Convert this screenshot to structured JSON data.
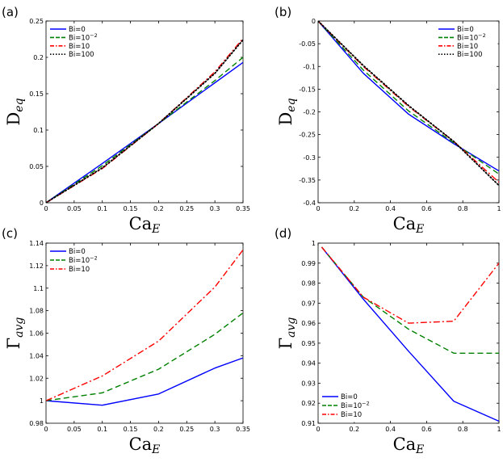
{
  "chart_data": [
    {
      "type": "line",
      "panel_label": "(a)",
      "ylabel_main": "D",
      "ylabel_sub": "eq",
      "xlabel_main": "Ca",
      "xlabel_sub": "E",
      "xlim": [
        0,
        0.35
      ],
      "ylim": [
        0,
        0.25
      ],
      "xticks": [
        0,
        0.05,
        0.1,
        0.15,
        0.2,
        0.25,
        0.3,
        0.35
      ],
      "xtick_labels": [
        "0",
        "0.05",
        "0.1",
        "0.15",
        "0.2",
        "0.25",
        "0.3",
        "0.35"
      ],
      "yticks": [
        0,
        0.05,
        0.1,
        0.15,
        0.2,
        0.25
      ],
      "ytick_labels": [
        "0",
        "0.05",
        "0.1",
        "0.15",
        "0.2",
        "0.25"
      ],
      "legend_position": "top-left",
      "series": [
        {
          "name": "Bi=0",
          "name_base": "Bi=0",
          "name_exp": "",
          "color": "#0000ff",
          "dash": "solid",
          "x": [
            0,
            0.1,
            0.2,
            0.3,
            0.35
          ],
          "y": [
            0,
            0.054,
            0.109,
            0.165,
            0.193
          ]
        },
        {
          "name": "Bi=10^-2",
          "name_base": "Bi=10",
          "name_exp": "−2",
          "color": "#008000",
          "dash": "dash",
          "x": [
            0,
            0.1,
            0.2,
            0.3,
            0.35
          ],
          "y": [
            0,
            0.051,
            0.109,
            0.168,
            0.2
          ]
        },
        {
          "name": "Bi=10",
          "name_base": "Bi=10",
          "name_exp": "",
          "color": "#ff0000",
          "dash": "dashdot",
          "x": [
            0,
            0.1,
            0.2,
            0.3,
            0.35
          ],
          "y": [
            0,
            0.047,
            0.109,
            0.18,
            0.226
          ]
        },
        {
          "name": "Bi=100",
          "name_base": "Bi=100",
          "name_exp": "",
          "color": "#000000",
          "dash": "dot",
          "x": [
            0,
            0.1,
            0.2,
            0.3,
            0.35
          ],
          "y": [
            0,
            0.048,
            0.109,
            0.178,
            0.224
          ]
        }
      ]
    },
    {
      "type": "line",
      "panel_label": "(b)",
      "ylabel_main": "D",
      "ylabel_sub": "eq",
      "xlabel_main": "Ca",
      "xlabel_sub": "E",
      "xlim": [
        0,
        1
      ],
      "ylim": [
        -0.4,
        0
      ],
      "xticks": [
        0,
        0.2,
        0.4,
        0.6,
        0.8,
        1
      ],
      "xtick_labels": [
        "0",
        "0.2",
        "0.4",
        "0.6",
        "0.8",
        "1"
      ],
      "yticks": [
        -0.4,
        -0.35,
        -0.3,
        -0.25,
        -0.2,
        -0.15,
        -0.1,
        -0.05,
        0
      ],
      "ytick_labels": [
        "-0.4",
        "-0.35",
        "-0.3",
        "-0.25",
        "-0.2",
        "-0.15",
        "-0.1",
        "-0.05",
        "0"
      ],
      "legend_position": "top-right",
      "series": [
        {
          "name": "Bi=0",
          "name_base": "Bi=0",
          "name_exp": "",
          "color": "#0000ff",
          "dash": "solid",
          "x": [
            0,
            0.25,
            0.5,
            0.75,
            1
          ],
          "y": [
            0,
            -0.115,
            -0.205,
            -0.27,
            -0.33
          ]
        },
        {
          "name": "Bi=10^-2",
          "name_base": "Bi=10",
          "name_exp": "−2",
          "color": "#008000",
          "dash": "dash",
          "x": [
            0,
            0.25,
            0.5,
            0.75,
            1
          ],
          "y": [
            0,
            -0.108,
            -0.198,
            -0.268,
            -0.337
          ]
        },
        {
          "name": "Bi=10",
          "name_base": "Bi=10",
          "name_exp": "",
          "color": "#ff0000",
          "dash": "dashdot",
          "x": [
            0,
            0.25,
            0.5,
            0.75,
            1
          ],
          "y": [
            0,
            -0.1,
            -0.188,
            -0.265,
            -0.355
          ]
        },
        {
          "name": "Bi=100",
          "name_base": "Bi=100",
          "name_exp": "",
          "color": "#000000",
          "dash": "dot",
          "x": [
            0,
            0.25,
            0.5,
            0.75,
            1
          ],
          "y": [
            0,
            -0.098,
            -0.186,
            -0.265,
            -0.362
          ]
        }
      ]
    },
    {
      "type": "line",
      "panel_label": "(c)",
      "ylabel_main": "Γ",
      "ylabel_sub": "avg",
      "xlabel_main": "Ca",
      "xlabel_sub": "E",
      "xlim": [
        0,
        0.35
      ],
      "ylim": [
        0.98,
        1.14
      ],
      "xticks": [
        0,
        0.05,
        0.1,
        0.15,
        0.2,
        0.25,
        0.3,
        0.35
      ],
      "xtick_labels": [
        "0",
        "0.05",
        "0.1",
        "0.15",
        "0.2",
        "0.25",
        "0.3",
        "0.35"
      ],
      "yticks": [
        0.98,
        1,
        1.02,
        1.04,
        1.06,
        1.08,
        1.1,
        1.12,
        1.14
      ],
      "ytick_labels": [
        "0.98",
        "1",
        "1.02",
        "1.04",
        "1.06",
        "1.08",
        "1.1",
        "1.12",
        "1.14"
      ],
      "legend_position": "top-left",
      "series": [
        {
          "name": "Bi=0",
          "name_base": "Bi=0",
          "name_exp": "",
          "color": "#0000ff",
          "dash": "solid",
          "x": [
            0,
            0.1,
            0.2,
            0.3,
            0.35
          ],
          "y": [
            1.0,
            0.996,
            1.006,
            1.029,
            1.038
          ]
        },
        {
          "name": "Bi=10^-2",
          "name_base": "Bi=10",
          "name_exp": "−2",
          "color": "#008000",
          "dash": "dash",
          "x": [
            0,
            0.1,
            0.2,
            0.3,
            0.35
          ],
          "y": [
            1.0,
            1.007,
            1.028,
            1.059,
            1.078
          ]
        },
        {
          "name": "Bi=10",
          "name_base": "Bi=10",
          "name_exp": "",
          "color": "#ff0000",
          "dash": "dashdot",
          "x": [
            0,
            0.1,
            0.2,
            0.3,
            0.35
          ],
          "y": [
            1.0,
            1.022,
            1.053,
            1.101,
            1.134
          ]
        }
      ]
    },
    {
      "type": "line",
      "panel_label": "(d)",
      "ylabel_main": "Γ",
      "ylabel_sub": "avg",
      "xlabel_main": "Ca",
      "xlabel_sub": "E",
      "xlim": [
        0,
        1
      ],
      "ylim": [
        0.91,
        1
      ],
      "xticks": [
        0,
        0.2,
        0.4,
        0.6,
        0.8,
        1
      ],
      "xtick_labels": [
        "0",
        "0.2",
        "0.4",
        "0.6",
        "0.8",
        "1"
      ],
      "yticks": [
        0.91,
        0.92,
        0.93,
        0.94,
        0.95,
        0.96,
        0.97,
        0.98,
        0.99,
        1
      ],
      "ytick_labels": [
        "0.91",
        "0.92",
        "0.93",
        "0.94",
        "0.95",
        "0.96",
        "0.97",
        "0.98",
        "0.99",
        "1"
      ],
      "legend_position": "bottom-left",
      "series": [
        {
          "name": "Bi=0",
          "name_base": "Bi=0",
          "name_exp": "",
          "color": "#0000ff",
          "dash": "solid",
          "x": [
            0.02,
            0.25,
            0.5,
            0.75,
            1
          ],
          "y": [
            0.998,
            0.972,
            0.946,
            0.921,
            0.911
          ]
        },
        {
          "name": "Bi=10^-2",
          "name_base": "Bi=10",
          "name_exp": "−2",
          "color": "#008000",
          "dash": "dash",
          "x": [
            0.02,
            0.25,
            0.5,
            0.75,
            1
          ],
          "y": [
            0.998,
            0.973,
            0.957,
            0.945,
            0.945
          ]
        },
        {
          "name": "Bi=10",
          "name_base": "Bi=10",
          "name_exp": "",
          "color": "#ff0000",
          "dash": "dashdot",
          "x": [
            0.02,
            0.25,
            0.5,
            0.75,
            1
          ],
          "y": [
            0.998,
            0.973,
            0.96,
            0.961,
            0.99
          ]
        }
      ]
    }
  ]
}
